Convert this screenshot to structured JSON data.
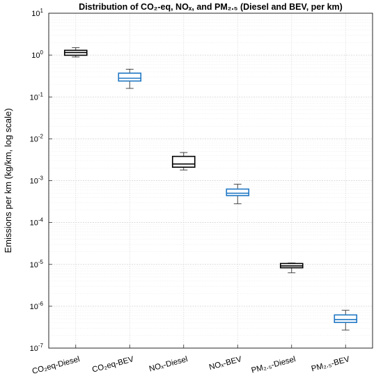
{
  "chart_data": {
    "type": "box",
    "title": "Distribution of CO₂-eq, NOₓ, and PM₂.₅ (Diesel and BEV, per km)",
    "ylabel": "Emissions per km (kg/km, log scale)",
    "xlabel": "",
    "yscale": "log",
    "ylim": [
      1e-07,
      10
    ],
    "yticks": [
      {
        "value": 1e-07,
        "base": "10",
        "exp": "-7"
      },
      {
        "value": 1e-06,
        "base": "10",
        "exp": "-6"
      },
      {
        "value": 1e-05,
        "base": "10",
        "exp": "-5"
      },
      {
        "value": 0.0001,
        "base": "10",
        "exp": "-4"
      },
      {
        "value": 0.001,
        "base": "10",
        "exp": "-3"
      },
      {
        "value": 0.01,
        "base": "10",
        "exp": "-2"
      },
      {
        "value": 0.1,
        "base": "10",
        "exp": "-1"
      },
      {
        "value": 1,
        "base": "10",
        "exp": "0"
      },
      {
        "value": 10,
        "base": "10",
        "exp": "1"
      }
    ],
    "grid": true,
    "colors": {
      "diesel": "#000000",
      "bev": "#1f77c4",
      "grid": "#d9d9d9",
      "axis": "#262626"
    },
    "categories": [
      {
        "label": "CO₂eq-Diesel",
        "group": "diesel",
        "min": 0.9,
        "q1": 0.99,
        "median": 1.15,
        "q3": 1.3,
        "max": 1.5
      },
      {
        "label": "CO₂eq-BEV",
        "group": "bev",
        "min": 0.16,
        "q1": 0.24,
        "median": 0.28,
        "q3": 0.37,
        "max": 0.46
      },
      {
        "label": "NOₓ-Diesel",
        "group": "diesel",
        "min": 0.0018,
        "q1": 0.0021,
        "median": 0.0025,
        "q3": 0.0038,
        "max": 0.0047
      },
      {
        "label": "NOₓ-BEV",
        "group": "bev",
        "min": 0.00028,
        "q1": 0.00044,
        "median": 0.0005,
        "q3": 0.00063,
        "max": 0.00082
      },
      {
        "label": "PM₂.₅-Diesel",
        "group": "diesel",
        "min": 6.3e-06,
        "q1": 8.3e-06,
        "median": 9.2e-06,
        "q3": 1.05e-05,
        "max": 1.08e-05
      },
      {
        "label": "PM₂.₅-BEV",
        "group": "bev",
        "min": 2.7e-07,
        "q1": 4.1e-07,
        "median": 4.8e-07,
        "q3": 6.2e-07,
        "max": 8e-07
      }
    ]
  }
}
